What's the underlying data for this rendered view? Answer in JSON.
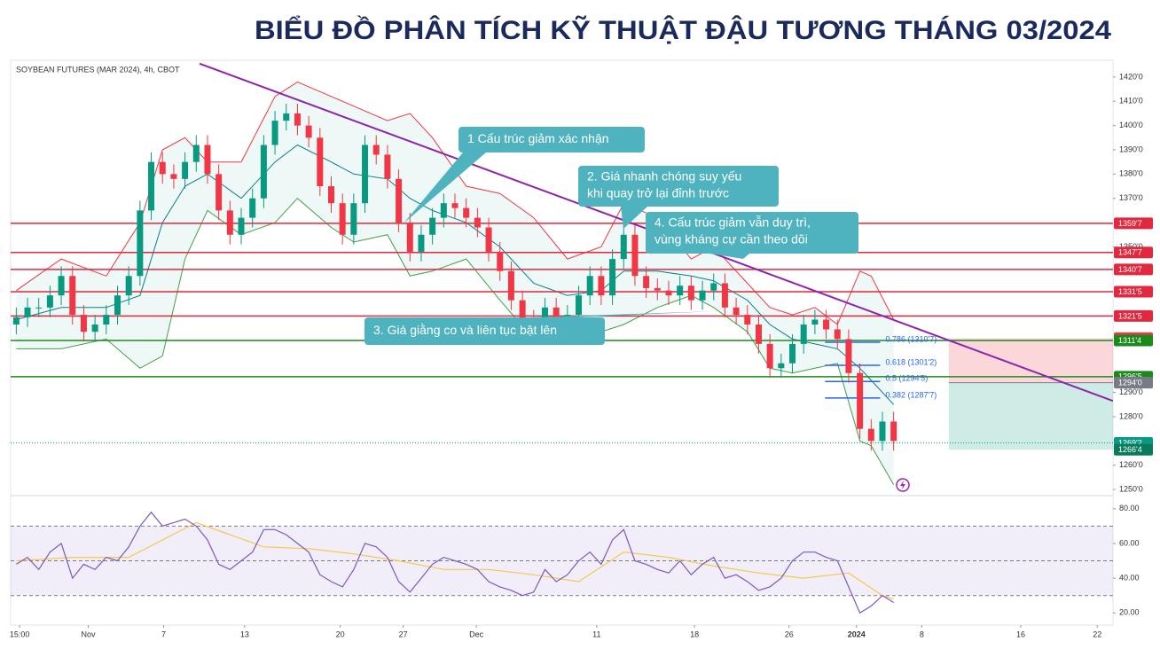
{
  "chart_data": {
    "type": "candlestick",
    "title": "BIỂU ĐỒ PHÂN TÍCH KỸ THUẬT ĐẬU TƯƠNG THÁNG 03/2024",
    "subtitle": "SOYBEAN FUTURES (MAR 2024), 4h, CBOT",
    "up_color": "#089981",
    "down_color": "#f23645",
    "xlim": [
      -0.5,
      97.5
    ],
    "ylim": [
      1248.2,
      1426.9
    ],
    "xticks": [
      {
        "value": 0.3,
        "label": "15:00"
      },
      {
        "value": 6.4,
        "label": "Nov"
      },
      {
        "value": 13.1,
        "label": "7"
      },
      {
        "value": 20.3,
        "label": "13"
      },
      {
        "value": 28.8,
        "label": "20"
      },
      {
        "value": 34.4,
        "label": "27"
      },
      {
        "value": 40.9,
        "label": "Dec"
      },
      {
        "value": 51.6,
        "label": "11"
      },
      {
        "value": 60.3,
        "label": "18"
      },
      {
        "value": 68.7,
        "label": "26"
      },
      {
        "value": 74.7,
        "label": "2024"
      },
      {
        "value": 80.5,
        "label": "8"
      },
      {
        "value": 89.3,
        "label": "16"
      },
      {
        "value": 96.1,
        "label": "22"
      }
    ],
    "yticks": [
      {
        "value": 1420,
        "label": "1420'0"
      },
      {
        "value": 1410,
        "label": "1410'0"
      },
      {
        "value": 1400,
        "label": "1400'0"
      },
      {
        "value": 1390,
        "label": "1390'0"
      },
      {
        "value": 1380,
        "label": "1380'0"
      },
      {
        "value": 1370,
        "label": "1370'0"
      },
      {
        "value": 1350,
        "label": "1350'0"
      },
      {
        "value": 1290,
        "label": "1290'0"
      },
      {
        "value": 1280,
        "label": "1280'0"
      },
      {
        "value": 1260,
        "label": "1260'0"
      },
      {
        "value": 1250,
        "label": "1250'0"
      }
    ],
    "open": [
      1318,
      1321,
      1325,
      1325,
      1330,
      1338,
      1322,
      1315,
      1318,
      1322,
      1330,
      1338,
      1365,
      1385,
      1380,
      1378,
      1385,
      1392,
      1380,
      1365,
      1355,
      1362,
      1370,
      1392,
      1402,
      1405,
      1400,
      1395,
      1375,
      1368,
      1355,
      1368,
      1392,
      1388,
      1378,
      1360,
      1348,
      1355,
      1362,
      1368,
      1366,
      1362,
      1358,
      1348,
      1340,
      1328,
      1320,
      1318,
      1325,
      1320,
      1322,
      1330,
      1338,
      1330,
      1345,
      1355,
      1338,
      1333,
      1332,
      1330,
      1334,
      1328,
      1332,
      1335,
      1325,
      1322,
      1318,
      1310,
      1300,
      1302,
      1310,
      1318,
      1320,
      1316,
      1312,
      1298,
      1275,
      1270,
      1278
    ],
    "high": [
      1325,
      1329,
      1329,
      1334,
      1342,
      1342,
      1326,
      1322,
      1326,
      1334,
      1342,
      1369,
      1389,
      1389,
      1384,
      1389,
      1396,
      1396,
      1384,
      1369,
      1366,
      1374,
      1396,
      1406,
      1409,
      1409,
      1404,
      1399,
      1379,
      1372,
      1372,
      1396,
      1396,
      1392,
      1382,
      1364,
      1359,
      1366,
      1372,
      1372,
      1370,
      1366,
      1362,
      1352,
      1344,
      1332,
      1324,
      1329,
      1329,
      1326,
      1334,
      1342,
      1342,
      1349,
      1359,
      1359,
      1342,
      1337,
      1336,
      1338,
      1338,
      1336,
      1339,
      1339,
      1329,
      1326,
      1322,
      1314,
      1306,
      1314,
      1322,
      1324,
      1324,
      1320,
      1316,
      1302,
      1279,
      1282,
      1282
    ],
    "low": [
      1314,
      1317,
      1321,
      1321,
      1326,
      1318,
      1311,
      1311,
      1314,
      1318,
      1326,
      1334,
      1361,
      1376,
      1374,
      1374,
      1381,
      1376,
      1361,
      1351,
      1351,
      1358,
      1366,
      1388,
      1398,
      1396,
      1391,
      1371,
      1364,
      1351,
      1351,
      1364,
      1384,
      1374,
      1356,
      1344,
      1344,
      1351,
      1358,
      1362,
      1358,
      1354,
      1344,
      1336,
      1324,
      1316,
      1314,
      1314,
      1316,
      1316,
      1318,
      1326,
      1326,
      1326,
      1341,
      1334,
      1329,
      1328,
      1326,
      1326,
      1324,
      1324,
      1328,
      1321,
      1318,
      1314,
      1306,
      1296,
      1296,
      1298,
      1306,
      1314,
      1312,
      1308,
      1294,
      1271,
      1266,
      1266,
      1266
    ],
    "close": [
      1321,
      1325,
      1325,
      1330,
      1338,
      1322,
      1315,
      1318,
      1322,
      1330,
      1338,
      1365,
      1385,
      1380,
      1378,
      1385,
      1392,
      1380,
      1365,
      1355,
      1362,
      1370,
      1392,
      1402,
      1405,
      1400,
      1395,
      1375,
      1368,
      1355,
      1368,
      1392,
      1388,
      1378,
      1360,
      1348,
      1355,
      1362,
      1368,
      1366,
      1362,
      1358,
      1348,
      1340,
      1328,
      1320,
      1318,
      1325,
      1320,
      1322,
      1330,
      1338,
      1330,
      1345,
      1355,
      1338,
      1333,
      1332,
      1330,
      1334,
      1328,
      1332,
      1335,
      1325,
      1322,
      1318,
      1310,
      1300,
      1302,
      1310,
      1318,
      1320,
      1316,
      1312,
      1298,
      1275,
      1270,
      1278,
      1270
    ],
    "bollinger": {
      "x": [
        0,
        4,
        8,
        11,
        13,
        15,
        17,
        20,
        23,
        25,
        28,
        30,
        33,
        35,
        37,
        40,
        43,
        46,
        49,
        52,
        54,
        57,
        60,
        62,
        65,
        67,
        69,
        71,
        73,
        75,
        76,
        78
      ],
      "upper": [
        1332,
        1345,
        1338,
        1360,
        1390,
        1395,
        1385,
        1385,
        1412,
        1418,
        1412,
        1408,
        1402,
        1405,
        1395,
        1375,
        1372,
        1362,
        1345,
        1350,
        1368,
        1362,
        1345,
        1350,
        1335,
        1325,
        1322,
        1325,
        1318,
        1340,
        1338,
        1320
      ],
      "middle": [
        1320,
        1325,
        1325,
        1330,
        1360,
        1375,
        1380,
        1370,
        1385,
        1392,
        1385,
        1380,
        1378,
        1370,
        1365,
        1360,
        1350,
        1335,
        1330,
        1332,
        1340,
        1340,
        1338,
        1336,
        1328,
        1318,
        1312,
        1310,
        1308,
        1300,
        1295,
        1285
      ],
      "lower": [
        1308,
        1308,
        1312,
        1300,
        1305,
        1345,
        1365,
        1355,
        1360,
        1370,
        1358,
        1352,
        1355,
        1338,
        1340,
        1345,
        1328,
        1312,
        1315,
        1315,
        1318,
        1325,
        1330,
        1325,
        1315,
        1300,
        1298,
        1300,
        1302,
        1270,
        1268,
        1252
      ],
      "upper_color": "#f23645",
      "middle_color": "#0b7e8a",
      "lower_color": "#43a047"
    },
    "trendline": {
      "x": [
        16.3,
        97.5
      ],
      "values": [
        1425.5,
        1286.5
      ],
      "color": "#8e24aa"
    },
    "levels": [
      {
        "value": 1359.7,
        "label": "1359'7",
        "color": "#e0283f",
        "line": "solid"
      },
      {
        "value": 1347.7,
        "label": "1347'7",
        "color": "#e0283f",
        "line": "solid"
      },
      {
        "value": 1340.7,
        "label": "1340'7",
        "color": "#e0283f",
        "line": "solid"
      },
      {
        "value": 1331.5,
        "label": "1331'5",
        "color": "#e0283f",
        "line": "solid"
      },
      {
        "value": 1321.5,
        "label": "1321'5",
        "color": "#e0283f",
        "line": "solid"
      },
      {
        "value": 1312.4,
        "label": "1312'4",
        "color": "#f23645"
      },
      {
        "value": 1311.4,
        "label": "1311'4",
        "color": "#1b8a1b",
        "line": "solid"
      },
      {
        "value": 1296.5,
        "label": "1296'5",
        "color": "#1b8a1b",
        "line": "solid"
      },
      {
        "value": 1294.0,
        "label": "1294'0",
        "color": "#787b86"
      },
      {
        "value": 1269.2,
        "label": "1269'2",
        "color": "#089981",
        "line": "dotted"
      },
      {
        "value": 1266.4,
        "label": "1266'4",
        "color": "#0a7a5a"
      }
    ],
    "fibonacci": {
      "x": [
        71.9,
        76.8
      ],
      "color": "#2962ff",
      "levels": [
        {
          "value": 1310.7,
          "label": "0.786 (1310'7)"
        },
        {
          "value": 1301.2,
          "label": "0.618 (1301'2)"
        },
        {
          "value": 1294.5,
          "label": "0.5 (1294'5)"
        },
        {
          "value": 1287.7,
          "label": "0.382 (1287'7)"
        }
      ]
    },
    "position": {
      "x": [
        82.9,
        97.5
      ],
      "stop": 1312.4,
      "entry": 1294.0,
      "target": 1266.4
    },
    "annotations": [
      {
        "lines": [
          "1 Cấu trúc giảm xác nhận"
        ]
      },
      {
        "lines": [
          "2. Giá nhanh chóng suy yếu",
          "khi quay trở lại đỉnh trước"
        ]
      },
      {
        "lines": [
          "4. Cấu trúc giảm vẫn duy trì,",
          "vùng kháng cự cần theo dõi"
        ]
      },
      {
        "lines": [
          "3. Giá giằng co và liên tục bật lên"
        ]
      }
    ],
    "rsi": {
      "ylim": [
        13,
        86
      ],
      "yticks": [
        {
          "value": 80,
          "label": "80.00"
        },
        {
          "value": 60,
          "label": "60.00"
        },
        {
          "value": 40,
          "label": "40.00"
        },
        {
          "value": 20,
          "label": "20.00"
        }
      ],
      "bands": [
        70,
        50,
        30
      ],
      "color": "#7e57c2",
      "values": [
        48,
        52,
        45,
        55,
        60,
        40,
        48,
        45,
        52,
        50,
        58,
        70,
        78,
        70,
        72,
        74,
        70,
        62,
        48,
        45,
        50,
        55,
        68,
        68,
        65,
        60,
        55,
        42,
        38,
        35,
        45,
        60,
        58,
        52,
        38,
        32,
        40,
        48,
        52,
        50,
        48,
        45,
        38,
        35,
        33,
        30,
        32,
        45,
        38,
        42,
        50,
        55,
        48,
        62,
        68,
        50,
        48,
        45,
        43,
        50,
        42,
        48,
        52,
        40,
        42,
        38,
        33,
        35,
        40,
        50,
        55,
        55,
        52,
        50,
        35,
        20,
        24,
        30,
        26
      ],
      "ma": {
        "x": [
          0,
          5,
          10,
          13,
          16,
          19,
          22,
          26,
          30,
          34,
          38,
          42,
          46,
          50,
          54,
          58,
          62,
          66,
          70,
          74,
          77,
          78
        ],
        "values": [
          50,
          52,
          52,
          62,
          72,
          65,
          58,
          57,
          54,
          50,
          45,
          45,
          42,
          38,
          55,
          52,
          47,
          43,
          40,
          43,
          30,
          28
        ],
        "color": "#f2c94c"
      }
    }
  }
}
